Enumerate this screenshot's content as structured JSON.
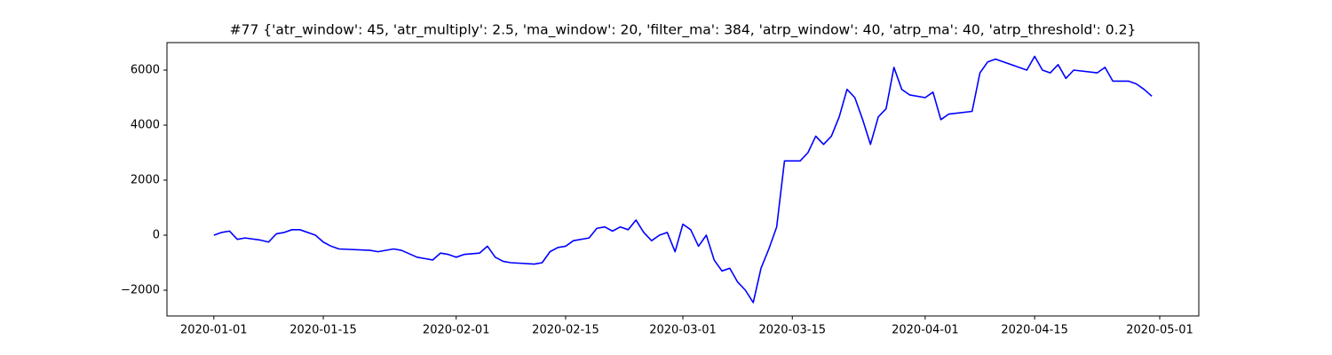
{
  "chart_data": {
    "type": "line",
    "title": "#77 {'atr_window': 45, 'atr_multiply': 2.5, 'ma_window': 20, 'filter_ma': 384, 'atrp_window': 40, 'atrp_ma': 40, 'atrp_threshold': 0.2}",
    "color": "#0000ff",
    "x": [
      "2020-01-01",
      "2020-01-02",
      "2020-01-03",
      "2020-01-04",
      "2020-01-05",
      "2020-01-07",
      "2020-01-08",
      "2020-01-09",
      "2020-01-10",
      "2020-01-11",
      "2020-01-12",
      "2020-01-14",
      "2020-01-15",
      "2020-01-16",
      "2020-01-17",
      "2020-01-21",
      "2020-01-22",
      "2020-01-24",
      "2020-01-25",
      "2020-01-27",
      "2020-01-28",
      "2020-01-29",
      "2020-01-30",
      "2020-01-31",
      "2020-02-01",
      "2020-02-02",
      "2020-02-04",
      "2020-02-05",
      "2020-02-06",
      "2020-02-07",
      "2020-02-08",
      "2020-02-11",
      "2020-02-12",
      "2020-02-13",
      "2020-02-14",
      "2020-02-15",
      "2020-02-16",
      "2020-02-18",
      "2020-02-19",
      "2020-02-20",
      "2020-02-21",
      "2020-02-22",
      "2020-02-23",
      "2020-02-24",
      "2020-02-25",
      "2020-02-26",
      "2020-02-27",
      "2020-02-28",
      "2020-02-29",
      "2020-03-01",
      "2020-03-02",
      "2020-03-03",
      "2020-03-04",
      "2020-03-05",
      "2020-03-06",
      "2020-03-07",
      "2020-03-08",
      "2020-03-09",
      "2020-03-10",
      "2020-03-11",
      "2020-03-12",
      "2020-03-13",
      "2020-03-14",
      "2020-03-15",
      "2020-03-16",
      "2020-03-17",
      "2020-03-18",
      "2020-03-19",
      "2020-03-20",
      "2020-03-21",
      "2020-03-22",
      "2020-03-23",
      "2020-03-24",
      "2020-03-25",
      "2020-03-26",
      "2020-03-27",
      "2020-03-28",
      "2020-03-29",
      "2020-03-30",
      "2020-04-01",
      "2020-04-02",
      "2020-04-03",
      "2020-04-04",
      "2020-04-07",
      "2020-04-08",
      "2020-04-09",
      "2020-04-10",
      "2020-04-14",
      "2020-04-15",
      "2020-04-16",
      "2020-04-17",
      "2020-04-18",
      "2020-04-19",
      "2020-04-20",
      "2020-04-23",
      "2020-04-24",
      "2020-04-25",
      "2020-04-27",
      "2020-04-28",
      "2020-04-29",
      "2020-04-30"
    ],
    "values": [
      0,
      100,
      150,
      -150,
      -100,
      -180,
      -250,
      50,
      100,
      200,
      200,
      0,
      -250,
      -400,
      -500,
      -550,
      -600,
      -500,
      -550,
      -800,
      -850,
      -900,
      -650,
      -700,
      -800,
      -700,
      -650,
      -400,
      -800,
      -950,
      -1000,
      -1050,
      -1000,
      -600,
      -450,
      -400,
      -200,
      -100,
      250,
      300,
      150,
      300,
      200,
      550,
      100,
      -200,
      0,
      100,
      -600,
      400,
      200,
      -400,
      0,
      -900,
      -1300,
      -1200,
      -1700,
      -2000,
      -2450,
      -1200,
      -500,
      300,
      2700,
      2700,
      2700,
      3000,
      3600,
      3300,
      3600,
      4300,
      5300,
      5000,
      4200,
      3300,
      4300,
      4600,
      6100,
      5300,
      5100,
      5000,
      5200,
      4200,
      4400,
      4500,
      5900,
      6300,
      6400,
      6000,
      6500,
      6000,
      5900,
      6200,
      5700,
      6000,
      5900,
      6100,
      5600,
      5600,
      5500,
      5300,
      5050
    ],
    "xlim": [
      "2019-12-26",
      "2020-05-06"
    ],
    "xticks": [
      "2020-01-01",
      "2020-01-15",
      "2020-02-01",
      "2020-02-15",
      "2020-03-01",
      "2020-03-15",
      "2020-04-01",
      "2020-04-15",
      "2020-05-01"
    ],
    "ylim": [
      -2935,
      7000
    ],
    "yticks": [
      {
        "value": -2000,
        "label": "−2000"
      },
      0,
      2000,
      4000,
      6000
    ]
  }
}
